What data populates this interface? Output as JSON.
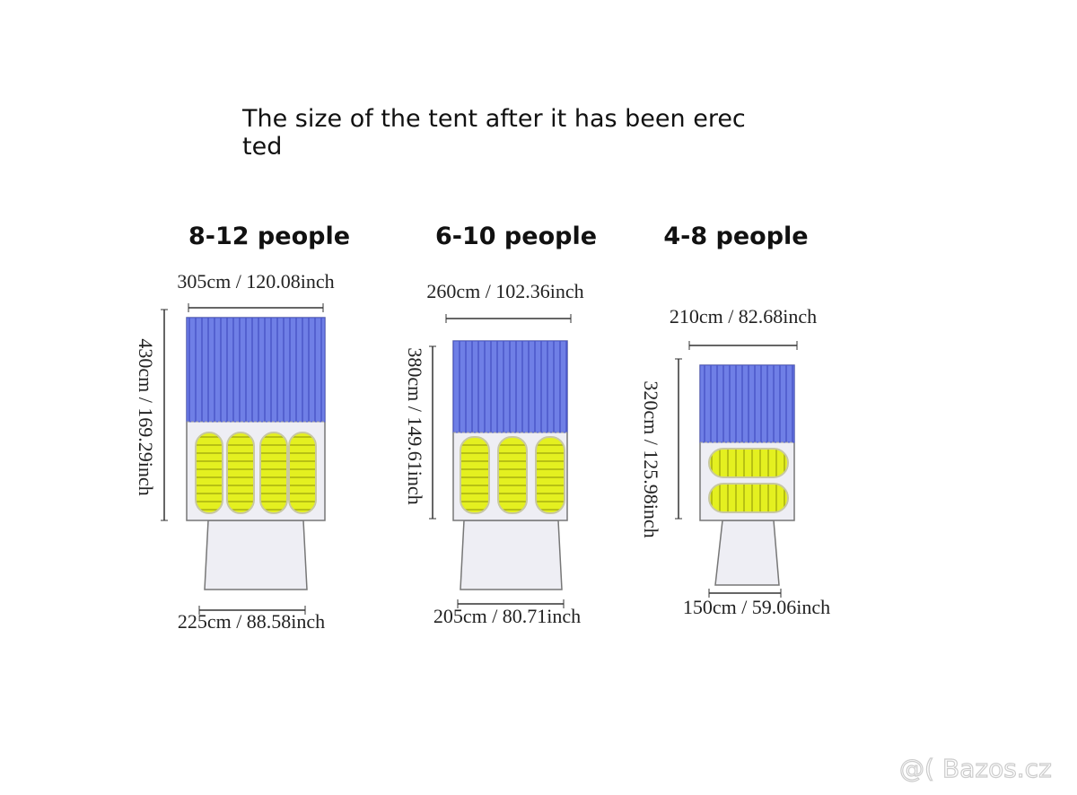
{
  "title_lines": [
    "The size of the tent after it has been erec",
    "ted"
  ],
  "tents": [
    {
      "label": "8-12 people",
      "width": "305cm / 120.08inch",
      "length": "430cm / 169.29inch",
      "vestibule_width": "225cm / 88.58inch"
    },
    {
      "label": "6-10 people",
      "width": "260cm / 102.36inch",
      "length": "380cm / 149.61inch",
      "vestibule_width": "205cm / 80.71inch"
    },
    {
      "label": "4-8 people",
      "width": "210cm / 82.68inch",
      "length": "320cm / 125.98inch",
      "vestibule_width": "150cm / 59.06inch"
    }
  ],
  "watermark": "Bazos.cz"
}
